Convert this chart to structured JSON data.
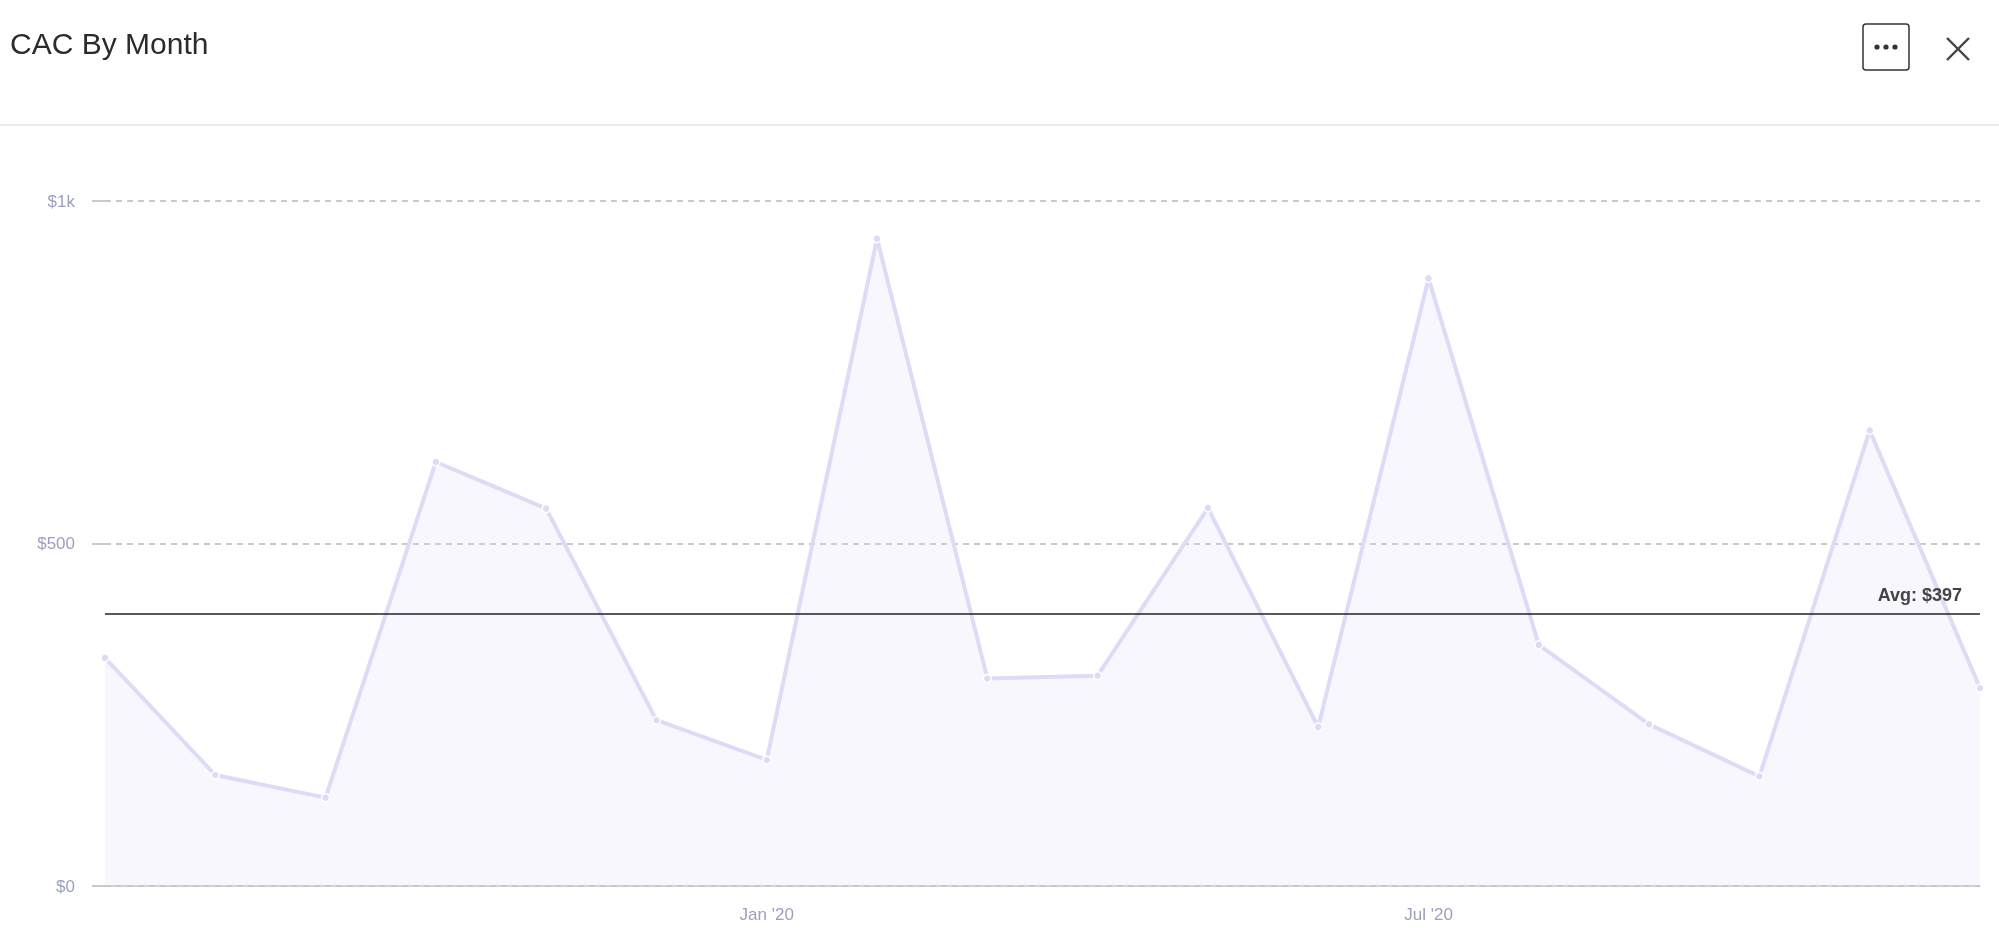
{
  "chart_data": {
    "type": "area",
    "title": "CAC By Month",
    "categories": [
      null,
      null,
      null,
      null,
      null,
      null,
      "Jan '20",
      null,
      null,
      null,
      null,
      null,
      "Jul '20",
      null,
      null,
      null,
      null,
      null
    ],
    "series": [
      {
        "color": "#dcdcf7",
        "values": [
          333,
          162,
          129,
          619,
          551,
          242,
          184,
          945,
          303,
          307,
          552,
          232,
          887,
          352,
          236,
          160,
          665,
          289
        ]
      }
    ],
    "ylim": [
      0,
      1000
    ],
    "yticks": [
      {
        "value": 0,
        "label": "$0"
      },
      {
        "value": 500,
        "label": "$500"
      },
      {
        "value": 1000,
        "label": "$1k"
      }
    ],
    "grid": "y",
    "marker": "circle",
    "line_style": "solid",
    "ref_lines": [
      {
        "axis": "y",
        "value": 397,
        "label": "Avg: $397",
        "color": "#222222"
      }
    ]
  }
}
